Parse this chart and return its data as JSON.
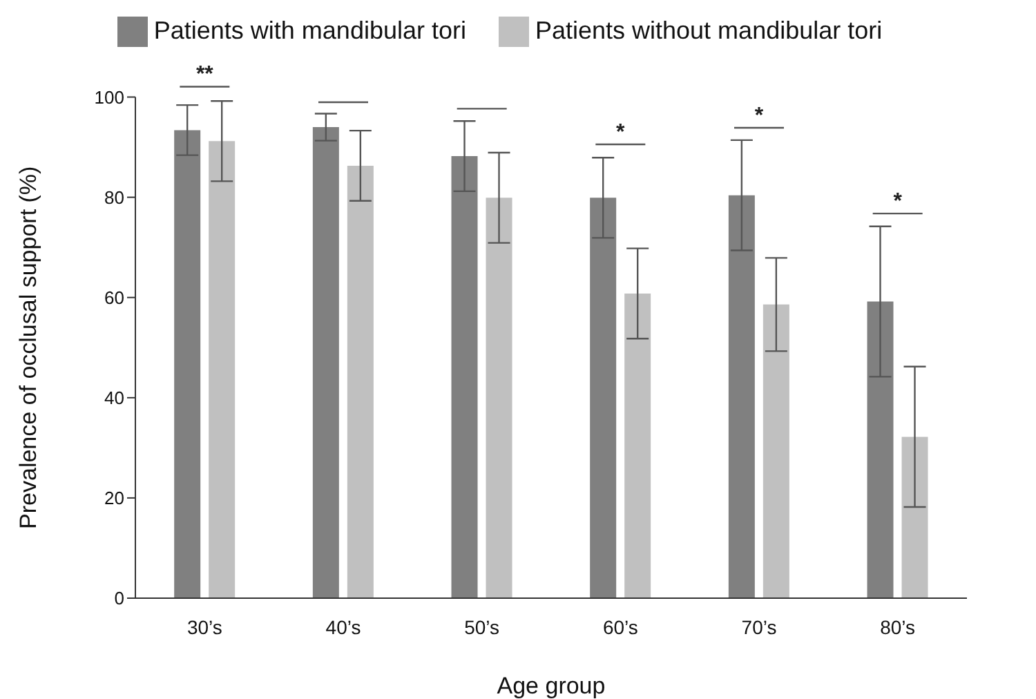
{
  "chart_data": {
    "type": "bar",
    "xlabel": "Age group",
    "ylabel": "Prevalence of occlusal support (%)",
    "categories": [
      "30’s",
      "40’s",
      "50’s",
      "60’s",
      "70’s",
      "80’s"
    ],
    "series": [
      {
        "name": "Patients with mandibular tori",
        "color": "#808080",
        "values": [
          93.4,
          94.0,
          88.2,
          79.9,
          80.4,
          59.2
        ],
        "errors": [
          5,
          2.7,
          7,
          8,
          11,
          15
        ]
      },
      {
        "name": "Patients without mandibular tori",
        "color": "#c0c0c0",
        "values": [
          91.2,
          86.3,
          79.9,
          60.8,
          58.6,
          32.2
        ],
        "errors": [
          8,
          7,
          9,
          9,
          9.3,
          14
        ]
      }
    ],
    "ylim": [
      0,
      100
    ],
    "yticks": [
      0,
      20,
      40,
      60,
      80,
      100
    ],
    "grid": false,
    "legend": "top",
    "annotations": [
      "**",
      "*",
      "*",
      "*"
    ]
  }
}
